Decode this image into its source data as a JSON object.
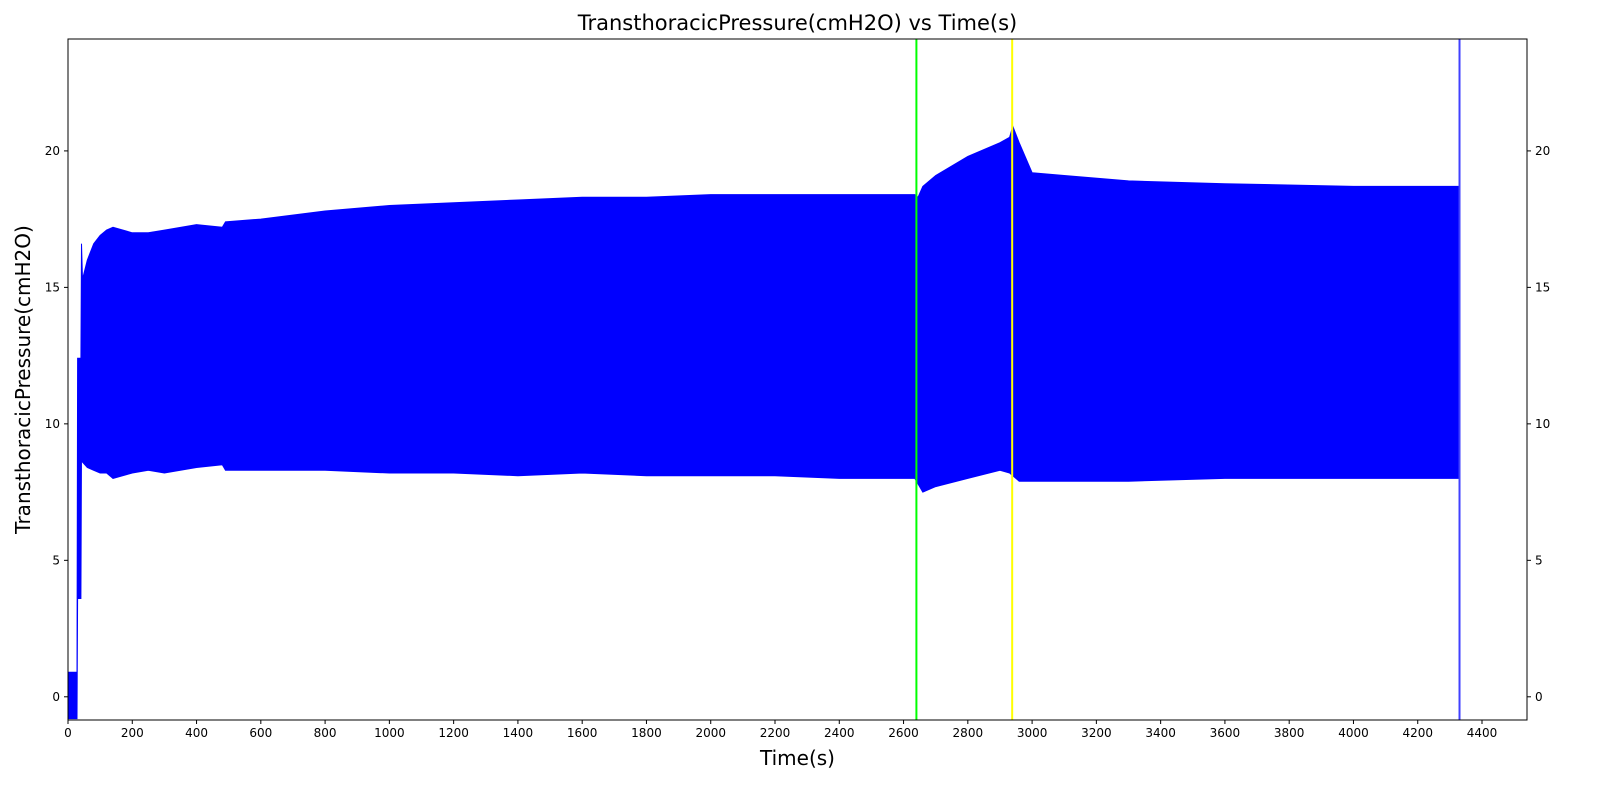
{
  "chart_data": {
    "type": "area",
    "title": "TransthoracicPressure(cmH2O) vs Time(s)",
    "xlabel": "Time(s)",
    "ylabel": "TransthoracicPressure(cmH2O)",
    "xlim": [
      0,
      4540
    ],
    "ylim": [
      -0.85,
      24.1
    ],
    "x_ticks": [
      0,
      200,
      400,
      600,
      800,
      1000,
      1200,
      1400,
      1600,
      1800,
      2000,
      2200,
      2400,
      2600,
      2800,
      3000,
      3200,
      3400,
      3600,
      3800,
      4000,
      4200,
      4400
    ],
    "y_ticks": [
      0,
      5,
      10,
      15,
      20
    ],
    "y_ticks_right": true,
    "grid": false,
    "series": [
      {
        "color": "#0000ff",
        "envelope": {
          "x": [
            0,
            28,
            30,
            40,
            42,
            45,
            60,
            80,
            100,
            120,
            140,
            200,
            250,
            300,
            400,
            480,
            490,
            600,
            800,
            1000,
            1200,
            1400,
            1600,
            1800,
            2000,
            2200,
            2400,
            2635,
            2645,
            2660,
            2700,
            2800,
            2900,
            2930,
            2940,
            2960,
            3000,
            3100,
            3300,
            3600,
            4000,
            4330
          ],
          "upper": [
            0.9,
            0.9,
            12.4,
            12.4,
            16.6,
            15.3,
            16.0,
            16.6,
            16.9,
            17.1,
            17.2,
            17.0,
            17.0,
            17.1,
            17.3,
            17.2,
            17.4,
            17.5,
            17.8,
            18.0,
            18.1,
            18.2,
            18.3,
            18.3,
            18.4,
            18.4,
            18.4,
            18.4,
            18.3,
            18.7,
            19.1,
            19.8,
            20.3,
            20.5,
            20.9,
            20.3,
            19.2,
            19.1,
            18.9,
            18.8,
            18.7,
            18.7
          ],
          "lower": [
            -0.8,
            -0.8,
            3.6,
            3.6,
            8.9,
            8.6,
            8.4,
            8.3,
            8.2,
            8.2,
            8.0,
            8.2,
            8.3,
            8.2,
            8.4,
            8.5,
            8.3,
            8.3,
            8.3,
            8.2,
            8.2,
            8.1,
            8.2,
            8.1,
            8.1,
            8.1,
            8.0,
            8.0,
            7.8,
            7.5,
            7.7,
            8.0,
            8.3,
            8.2,
            8.1,
            7.9,
            7.9,
            7.9,
            7.9,
            8.0,
            8.0,
            8.0
          ]
        }
      }
    ],
    "vlines": [
      {
        "x": 2640,
        "color": "#00ff00"
      },
      {
        "x": 2938,
        "color": "#ffff00"
      },
      {
        "x": 4330,
        "color": "#4040ff"
      }
    ]
  }
}
